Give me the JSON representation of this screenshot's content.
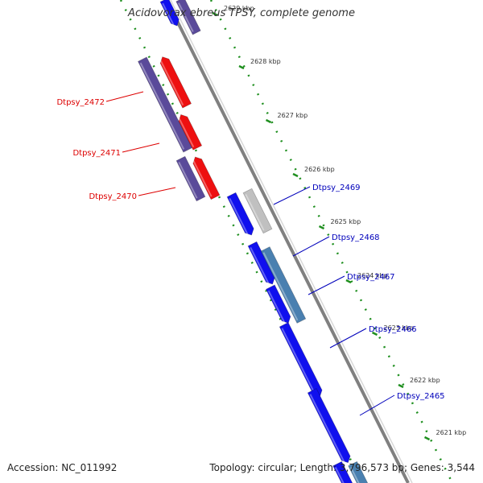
{
  "title": "Acidovorax ebreus TPSY, complete genome",
  "footer": {
    "accession": "Accession: NC_011992",
    "summary": "Topology: circular; Length: 3,796,573 bp; Genes: 3,544"
  },
  "colors": {
    "background": "#ffffff",
    "backbone": "#808080",
    "tick_dots": "#1f8f1f",
    "reverse_strand_label": "#dd0000",
    "forward_strand_label": "#0000bb",
    "gene_blue": "#1010ee",
    "gene_red": "#ee1010",
    "gene_purple": "#5a4a9a",
    "gene_grey": "#c0c0c0",
    "gene_steelblue": "#4a80b0"
  },
  "scale_ticks": [
    {
      "label": "2629 kbp"
    },
    {
      "label": "2628 kbp"
    },
    {
      "label": "2627 kbp"
    },
    {
      "label": "2626 kbp"
    },
    {
      "label": "2625 kbp"
    },
    {
      "label": "2624 kbp"
    },
    {
      "label": "2623 kbp"
    },
    {
      "label": "2622 kbp"
    },
    {
      "label": "2621 kbp"
    }
  ],
  "gene_labels": [
    {
      "text": "Dtpsy_2472",
      "strand": "reverse"
    },
    {
      "text": "Dtpsy_2471",
      "strand": "reverse"
    },
    {
      "text": "Dtpsy_2470",
      "strand": "reverse"
    },
    {
      "text": "Dtpsy_2469",
      "strand": "forward"
    },
    {
      "text": "Dtpsy_2468",
      "strand": "forward"
    },
    {
      "text": "Dtpsy_2467",
      "strand": "forward"
    },
    {
      "text": "Dtpsy_2466",
      "strand": "forward"
    },
    {
      "text": "Dtpsy_2465",
      "strand": "forward"
    }
  ]
}
